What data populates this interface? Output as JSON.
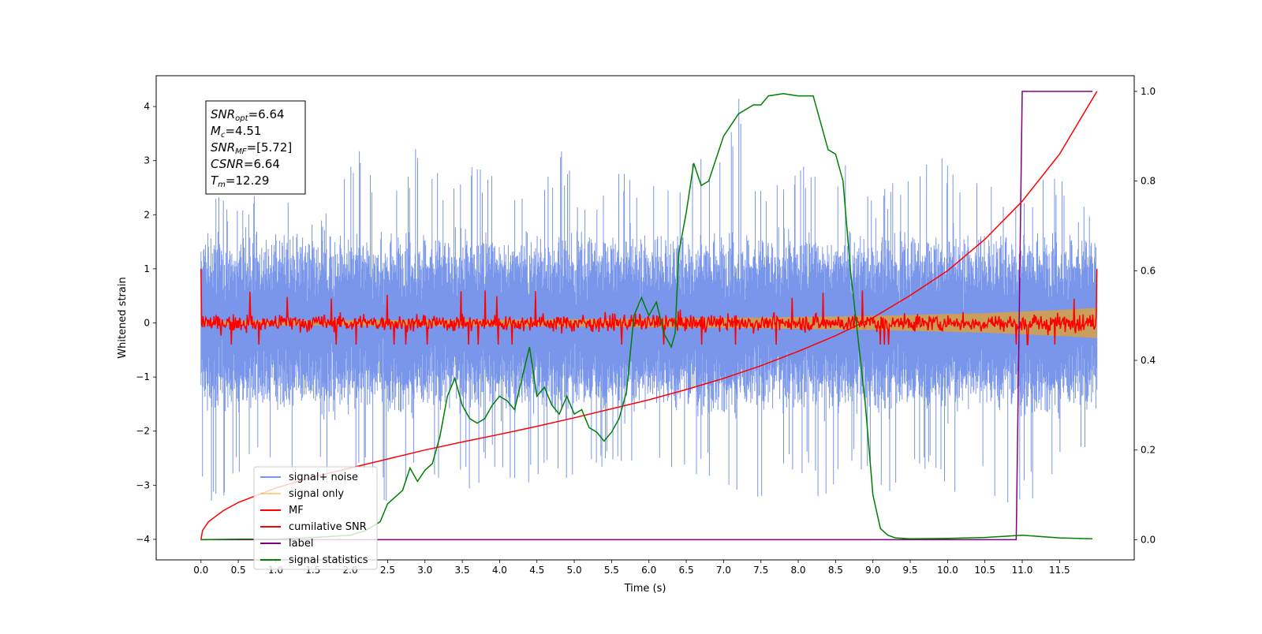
{
  "chart_data": {
    "type": "line",
    "xlabel": "Time (s)",
    "ylabel": "Whitened strain",
    "xlim": [
      -0.6,
      12.5
    ],
    "ylim": [
      -4.38,
      4.57
    ],
    "y2lim": [
      -0.045,
      1.035
    ],
    "x_ticks": [
      0.0,
      0.5,
      1.0,
      1.5,
      2.0,
      2.5,
      3.0,
      3.5,
      4.0,
      4.5,
      5.0,
      5.5,
      6.0,
      6.5,
      7.0,
      7.5,
      8.0,
      8.5,
      9.0,
      9.5,
      10.0,
      10.5,
      11.0,
      11.5
    ],
    "x_tick_labels": [
      "0.0",
      "0.5",
      "1.0",
      "1.5",
      "2.0",
      "2.5",
      "3.0",
      "3.5",
      "4.0",
      "4.5",
      "5.0",
      "5.5",
      "6.0",
      "6.5",
      "7.0",
      "7.5",
      "8.0",
      "8.5",
      "9.0",
      "9.5",
      "10.0",
      "10.5",
      "11.0",
      "11.5"
    ],
    "y_ticks": [
      -4,
      -3,
      -2,
      -1,
      0,
      1,
      2,
      3,
      4
    ],
    "y_tick_labels": [
      "−4",
      "−3",
      "−2",
      "−1",
      "0",
      "1",
      "2",
      "3",
      "4"
    ],
    "y2_ticks": [
      0.0,
      0.2,
      0.4,
      0.6,
      0.8,
      1.0
    ],
    "y2_tick_labels": [
      "0.0",
      "0.2",
      "0.4",
      "0.6",
      "0.8",
      "1.0"
    ],
    "grid": false,
    "legend_position": "lower-left",
    "annotation": {
      "lines": [
        {
          "base": "SNR",
          "sub": "opt",
          "value": "=6.64"
        },
        {
          "base": "M",
          "sub": "c",
          "value": "=4.51"
        },
        {
          "base": "SNR",
          "sub": "MF",
          "value": "=[5.72]"
        },
        {
          "base": "CSNR",
          "sub": "",
          "value": "=6.64"
        },
        {
          "base": "T",
          "sub": "m",
          "value": "=12.29"
        }
      ]
    },
    "series": [
      {
        "name": "signal+ noise",
        "color": "#4169e1",
        "alpha": 0.7,
        "axis": "left",
        "x_start": 0.0,
        "x_end": 12.0,
        "envelope_upper": [
          2.5,
          2.3,
          2.2,
          2.6,
          2.4,
          2.1,
          2.2,
          3.4,
          2.2,
          2.6,
          3.7,
          2.4,
          3.1,
          2.9,
          2.7,
          2.4,
          3.3,
          2.4,
          2.6,
          2.9,
          2.7,
          2.5,
          3.6,
          2.8,
          4.2,
          2.6,
          2.7,
          3.1,
          2.6,
          3.5,
          2.3,
          2.7,
          3.3,
          3.1,
          2.9,
          2.6,
          2.6,
          2.4,
          2.9,
          2.3,
          2.3
        ],
        "envelope_lower": [
          -3.3,
          -3.5,
          -2.5,
          -2.6,
          -3.0,
          -2.9,
          -3.1,
          -3.0,
          -3.3,
          -3.4,
          -3.0,
          -2.9,
          -3.3,
          -2.6,
          -3.4,
          -3.0,
          -2.8,
          -3.2,
          -3.0,
          -2.6,
          -3.1,
          -2.8,
          -3.0,
          -2.8,
          -3.9,
          -3.3,
          -3.0,
          -2.8,
          -3.6,
          -2.7,
          -3.1,
          -3.2,
          -3.1,
          -3.0,
          -3.5,
          -3.1,
          -3.7,
          -3.3,
          -3.2,
          -2.5,
          -2.2
        ],
        "typical_band": [
          -1.4,
          1.4
        ]
      },
      {
        "name": "signal only",
        "color": "#ffa500",
        "alpha": 0.5,
        "axis": "left",
        "x": [
          0.0,
          4.0,
          7.0,
          9.0,
          10.5,
          11.5,
          12.0
        ],
        "amplitude": [
          0.04,
          0.06,
          0.09,
          0.13,
          0.18,
          0.24,
          0.28
        ]
      },
      {
        "name": "MF",
        "color": "#ff0000",
        "axis": "left",
        "x_start": 0.0,
        "x_end": 12.0,
        "start_value": 1.0,
        "end_value": 1.0,
        "typical_band": [
          -0.3,
          0.3
        ],
        "peak_abs": 0.7
      },
      {
        "name": "cumilative SNR",
        "color": "#ff0000",
        "axis": "right",
        "x": [
          0.0,
          0.02,
          0.1,
          0.3,
          0.5,
          1.0,
          1.5,
          2.0,
          2.5,
          3.0,
          3.5,
          4.0,
          4.5,
          5.0,
          5.5,
          6.0,
          6.5,
          7.0,
          7.5,
          8.0,
          8.5,
          9.0,
          9.5,
          10.0,
          10.5,
          11.0,
          11.5,
          12.0
        ],
        "y": [
          0.0,
          0.02,
          0.04,
          0.065,
          0.083,
          0.115,
          0.14,
          0.16,
          0.18,
          0.2,
          0.218,
          0.235,
          0.253,
          0.272,
          0.292,
          0.312,
          0.335,
          0.36,
          0.388,
          0.42,
          0.455,
          0.495,
          0.545,
          0.6,
          0.67,
          0.755,
          0.86,
          1.0
        ]
      },
      {
        "name": "label",
        "color": "#800080",
        "axis": "right",
        "x": [
          0.0,
          10.92,
          11.0,
          11.94
        ],
        "y": [
          0.0,
          0.0,
          1.0,
          1.0
        ]
      },
      {
        "name": "signal statistics",
        "color": "#008000",
        "axis": "right",
        "x": [
          0.0,
          0.5,
          1.0,
          1.5,
          2.0,
          2.2,
          2.4,
          2.5,
          2.6,
          2.7,
          2.8,
          2.9,
          3.0,
          3.1,
          3.2,
          3.3,
          3.4,
          3.5,
          3.6,
          3.7,
          3.8,
          3.9,
          4.0,
          4.1,
          4.2,
          4.3,
          4.4,
          4.5,
          4.6,
          4.7,
          4.8,
          4.9,
          5.0,
          5.1,
          5.2,
          5.3,
          5.4,
          5.5,
          5.6,
          5.7,
          5.8,
          5.9,
          6.0,
          6.1,
          6.2,
          6.3,
          6.35,
          6.4,
          6.5,
          6.6,
          6.7,
          6.8,
          6.9,
          7.0,
          7.2,
          7.4,
          7.5,
          7.6,
          7.8,
          8.0,
          8.2,
          8.4,
          8.5,
          8.6,
          8.7,
          8.8,
          8.9,
          9.0,
          9.1,
          9.2,
          9.3,
          9.5,
          10.0,
          10.5,
          10.8,
          11.0,
          11.5,
          11.94
        ],
        "y": [
          0.0,
          0.001,
          0.001,
          0.005,
          0.01,
          0.02,
          0.04,
          0.08,
          0.095,
          0.11,
          0.16,
          0.13,
          0.155,
          0.17,
          0.23,
          0.32,
          0.36,
          0.3,
          0.27,
          0.26,
          0.27,
          0.3,
          0.32,
          0.31,
          0.29,
          0.36,
          0.43,
          0.32,
          0.34,
          0.3,
          0.28,
          0.32,
          0.28,
          0.29,
          0.25,
          0.24,
          0.22,
          0.24,
          0.27,
          0.33,
          0.5,
          0.54,
          0.5,
          0.53,
          0.46,
          0.43,
          0.46,
          0.64,
          0.73,
          0.84,
          0.79,
          0.8,
          0.85,
          0.9,
          0.95,
          0.97,
          0.97,
          0.99,
          0.995,
          0.99,
          0.99,
          0.87,
          0.86,
          0.8,
          0.6,
          0.45,
          0.3,
          0.1,
          0.025,
          0.01,
          0.004,
          0.002,
          0.003,
          0.005,
          0.008,
          0.01,
          0.004,
          0.002
        ]
      }
    ]
  }
}
